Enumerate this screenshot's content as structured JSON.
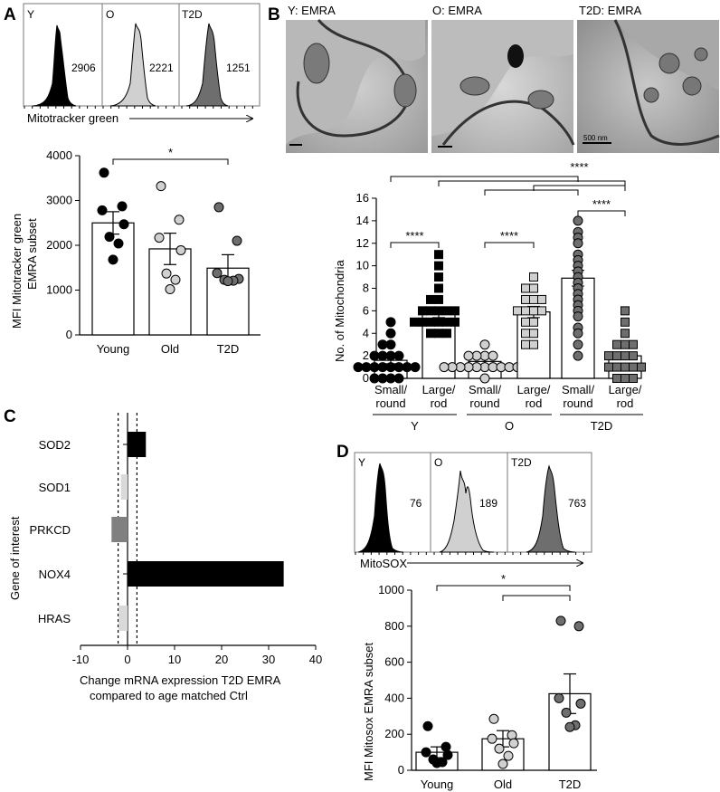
{
  "panels": {
    "a": "A",
    "b": "B",
    "c": "C",
    "d": "D"
  },
  "colors": {
    "young": "#000000",
    "old": "#d0d0d0",
    "t2d": "#6e6e6e",
    "sod1": "#d9d9d9",
    "prkcd": "#808080"
  },
  "chart_data": [
    {
      "id": "A-hist",
      "type": "histogram",
      "xlabel": "Mitotracker green",
      "panels": [
        {
          "label": "Y",
          "mfi": "2906"
        },
        {
          "label": "O",
          "mfi": "2221"
        },
        {
          "label": "T2D",
          "mfi": "1251"
        }
      ]
    },
    {
      "id": "A-bar",
      "type": "bar",
      "categories": [
        "Young",
        "Old",
        "T2D"
      ],
      "values": [
        2500,
        1920,
        1490
      ],
      "errors": [
        250,
        350,
        300
      ],
      "points": [
        [
          3620,
          2870,
          2780,
          2470,
          2190,
          2040,
          1680
        ],
        [
          3320,
          2570,
          2170,
          1890,
          1370,
          1230,
          1020
        ],
        [
          2850,
          2100,
          1380,
          1250,
          1230,
          1210,
          1200
        ]
      ],
      "ylabel": "MFI Mitotracker green EMRA subset",
      "ylim": [
        0,
        4000
      ],
      "yticks": [
        "0",
        "1000",
        "2000",
        "3000",
        "4000"
      ],
      "significance": [
        {
          "from": 0,
          "to": 2,
          "label": "*"
        }
      ]
    },
    {
      "id": "B-em",
      "type": "image",
      "labels": [
        "Y: EMRA",
        "O: EMRA",
        "T2D: EMRA"
      ],
      "scale_label": "500 nm"
    },
    {
      "id": "B-bar",
      "type": "bar",
      "categories": [
        "Small/round",
        "Large/rod",
        "Small/round",
        "Large/rod",
        "Small/round",
        "Large/rod"
      ],
      "category_lines": [
        [
          "Small/",
          "round"
        ],
        [
          "Large/",
          "rod"
        ],
        [
          "Small/",
          "round"
        ],
        [
          "Large/",
          "rod"
        ],
        [
          "Small/",
          "round"
        ],
        [
          "Large/",
          "rod"
        ]
      ],
      "groups": [
        "Y",
        "O",
        "T2D"
      ],
      "values": [
        1.6,
        5.8,
        1.5,
        5.9,
        8.9,
        2.0
      ],
      "errors": [
        0.3,
        0.4,
        0.3,
        0.5,
        0.7,
        0.3
      ],
      "ylabel": "No. of Mitochondria",
      "ylim": [
        0,
        16
      ],
      "yticks": [
        "0",
        "2",
        "4",
        "6",
        "8",
        "10",
        "12",
        "14",
        "16"
      ],
      "significance": [
        {
          "from": 0,
          "to": 1,
          "label": "****"
        },
        {
          "from": 2,
          "to": 3,
          "label": "****"
        },
        {
          "from": 4,
          "to": 5,
          "label": "****"
        },
        {
          "from": 0,
          "to": 4,
          "label": ""
        },
        {
          "from": 1,
          "to": 5,
          "label": ""
        },
        {
          "from": 2,
          "to": 4,
          "label": ""
        },
        {
          "from": 3,
          "to": 5,
          "label": "****"
        }
      ]
    },
    {
      "id": "C-barh",
      "type": "bar",
      "orientation": "horizontal",
      "categories": [
        "SOD2",
        "SOD1",
        "PRKCD",
        "NOX4",
        "HRAS"
      ],
      "values": [
        3.9,
        -1.4,
        -3.4,
        33.2,
        -1.9
      ],
      "xlabel": "Change mRNA expression T2D EMRA",
      "xlabel2": "compared to age matched Ctrl",
      "ylabel": "Gene of interest",
      "xlim": [
        -10,
        40
      ],
      "xticks": [
        "-10",
        "0",
        "10",
        "20",
        "30",
        "40"
      ],
      "threshold_lines": [
        -2,
        2
      ]
    },
    {
      "id": "D-hist",
      "type": "histogram",
      "xlabel": "MitoSOX",
      "panels": [
        {
          "label": "Y",
          "mfi": "76"
        },
        {
          "label": "O",
          "mfi": "189"
        },
        {
          "label": "T2D",
          "mfi": "763"
        }
      ]
    },
    {
      "id": "D-bar",
      "type": "bar",
      "categories": [
        "Young",
        "Old",
        "T2D"
      ],
      "values": [
        100,
        175,
        425
      ],
      "errors": [
        30,
        45,
        110
      ],
      "points": [
        [
          245,
          130,
          100,
          85,
          60,
          45,
          40
        ],
        [
          285,
          195,
          175,
          150,
          120,
          80,
          35
        ],
        [
          830,
          800,
          400,
          370,
          320,
          250,
          240
        ]
      ],
      "ylabel": "MFI Mitosox EMRA subset",
      "ylim": [
        0,
        1000
      ],
      "yticks": [
        "0",
        "200",
        "400",
        "600",
        "800",
        "1000"
      ],
      "significance": [
        {
          "from": 0,
          "to": 2,
          "label": "*"
        },
        {
          "from": 1,
          "to": 2,
          "label": ""
        }
      ]
    }
  ]
}
